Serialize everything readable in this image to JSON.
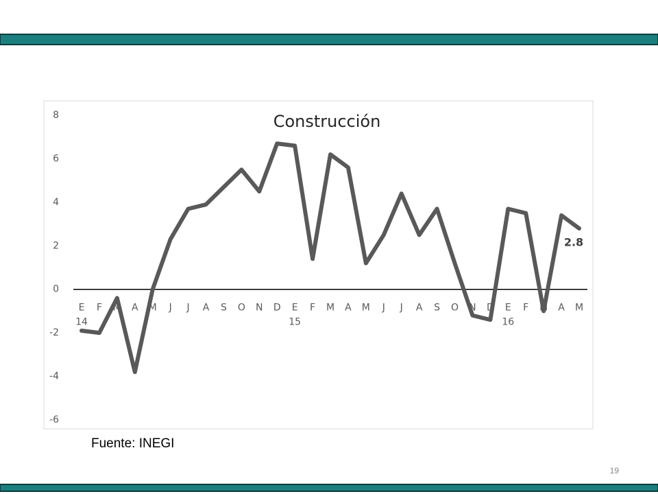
{
  "slide": {
    "footnote": "Fuente: INEGI",
    "page_number": 19
  },
  "chart_data": {
    "type": "line",
    "title": "Construcción",
    "categories": [
      "E",
      "F",
      "M",
      "A",
      "M",
      "J",
      "J",
      "A",
      "S",
      "O",
      "N",
      "D",
      "E",
      "F",
      "M",
      "A",
      "M",
      "J",
      "J",
      "A",
      "S",
      "O",
      "N",
      "D",
      "E",
      "F",
      "M",
      "A",
      "M"
    ],
    "year_labels": [
      "14",
      "15",
      "16"
    ],
    "series": [
      {
        "name": "Construcción",
        "color": "#595959",
        "values": [
          -1.9,
          -2.0,
          -0.4,
          -3.8,
          0.0,
          2.3,
          3.7,
          3.9,
          4.7,
          5.5,
          4.5,
          6.7,
          6.6,
          1.4,
          6.2,
          5.6,
          1.2,
          2.5,
          4.4,
          2.5,
          3.7,
          1.2,
          -1.2,
          -1.4,
          3.7,
          3.5,
          -1.0,
          3.4,
          2.8
        ]
      }
    ],
    "ylim": [
      -6,
      8
    ],
    "yticks": [
      -6,
      -4,
      -2,
      0,
      2,
      4,
      6,
      8
    ]
  }
}
